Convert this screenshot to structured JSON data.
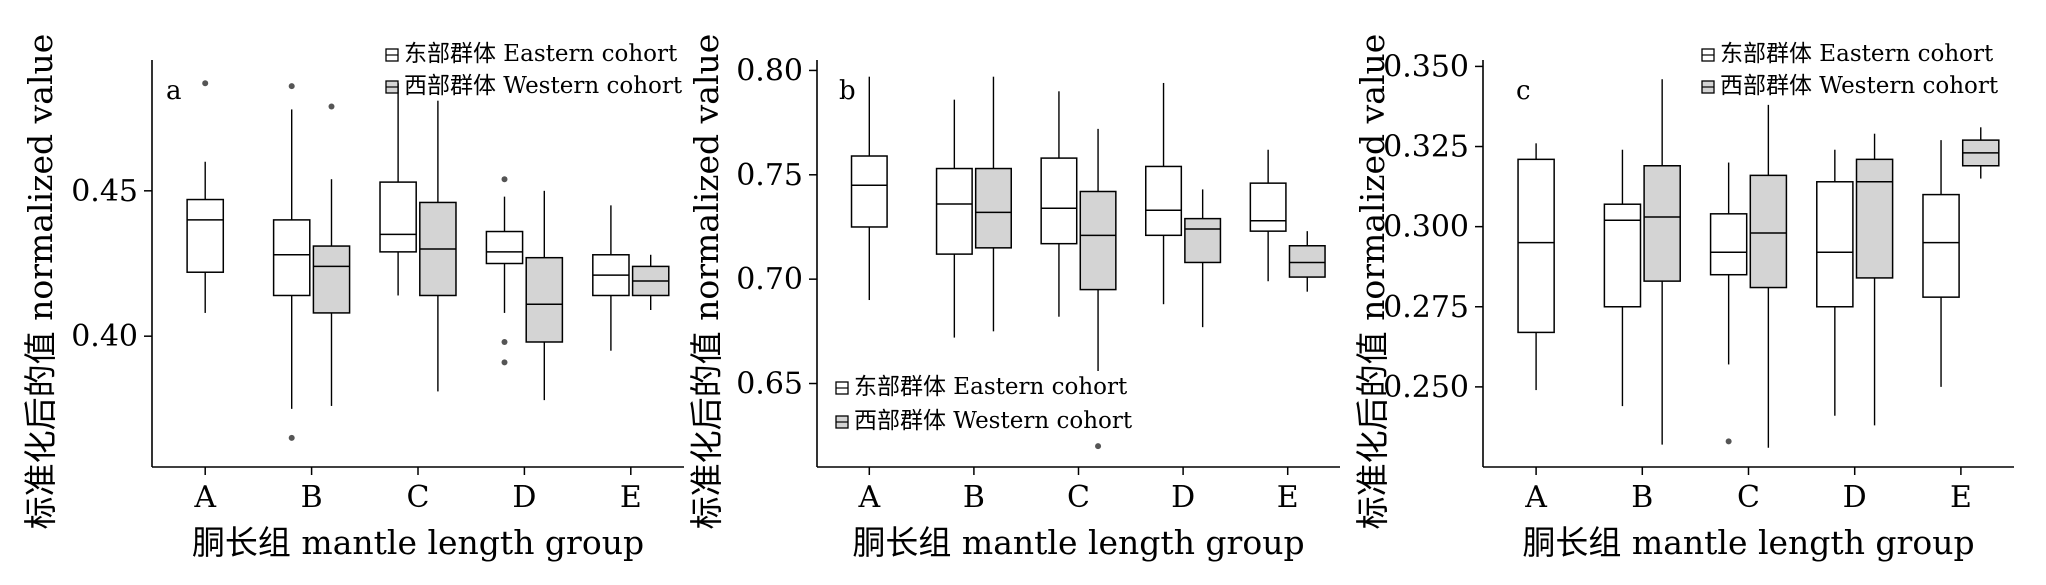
{
  "colors": {
    "eastern_fill": "#ffffff",
    "western_fill": "#d4d4d4",
    "stroke": "#000000",
    "outlier": "#555555"
  },
  "chart_data": [
    {
      "type": "boxplot",
      "panel_label": "a",
      "xlabel": "胴长组 mantle length group",
      "ylabel": "标准化后的值 normalized value",
      "categories": [
        "A",
        "B",
        "C",
        "D",
        "E"
      ],
      "ylim": [
        0.355,
        0.495
      ],
      "yticks": [
        0.4,
        0.45
      ],
      "ytick_labels": [
        "0.40",
        "0.45"
      ],
      "legend_position": "top-right",
      "series": [
        {
          "name": "东部群体 Eastern cohort",
          "boxes": [
            {
              "category": "A",
              "whisker_low": 0.408,
              "q1": 0.422,
              "median": 0.44,
              "q3": 0.447,
              "whisker_high": 0.46,
              "outliers": [
                0.487
              ]
            },
            {
              "category": "B",
              "whisker_low": 0.375,
              "q1": 0.414,
              "median": 0.428,
              "q3": 0.44,
              "whisker_high": 0.478,
              "outliers": [
                0.486,
                0.365
              ]
            },
            {
              "category": "C",
              "whisker_low": 0.414,
              "q1": 0.429,
              "median": 0.435,
              "q3": 0.453,
              "whisker_high": 0.487,
              "outliers": []
            },
            {
              "category": "D",
              "whisker_low": 0.408,
              "q1": 0.425,
              "median": 0.429,
              "q3": 0.436,
              "whisker_high": 0.448,
              "outliers": [
                0.454,
                0.398,
                0.391
              ]
            },
            {
              "category": "E",
              "whisker_low": 0.395,
              "q1": 0.414,
              "median": 0.421,
              "q3": 0.428,
              "whisker_high": 0.445,
              "outliers": []
            }
          ]
        },
        {
          "name": "西部群体 Western cohort",
          "boxes": [
            {
              "category": "A",
              "whisker_low": null,
              "q1": null,
              "median": null,
              "q3": null,
              "whisker_high": null,
              "outliers": []
            },
            {
              "category": "B",
              "whisker_low": 0.376,
              "q1": 0.408,
              "median": 0.424,
              "q3": 0.431,
              "whisker_high": 0.454,
              "outliers": [
                0.479
              ]
            },
            {
              "category": "C",
              "whisker_low": 0.381,
              "q1": 0.414,
              "median": 0.43,
              "q3": 0.446,
              "whisker_high": 0.481,
              "outliers": []
            },
            {
              "category": "D",
              "whisker_low": 0.378,
              "q1": 0.398,
              "median": 0.411,
              "q3": 0.427,
              "whisker_high": 0.45,
              "outliers": []
            },
            {
              "category": "E",
              "whisker_low": 0.409,
              "q1": 0.414,
              "median": 0.419,
              "q3": 0.424,
              "whisker_high": 0.428,
              "outliers": []
            }
          ]
        }
      ]
    },
    {
      "type": "boxplot",
      "panel_label": "b",
      "xlabel": "胴长组 mantle length group",
      "ylabel": "标准化后的值 normalized value",
      "categories": [
        "A",
        "B",
        "C",
        "D",
        "E"
      ],
      "ylim": [
        0.61,
        0.805
      ],
      "yticks": [
        0.65,
        0.7,
        0.75,
        0.8
      ],
      "ytick_labels": [
        "0.65",
        "0.70",
        "0.75",
        "0.80"
      ],
      "legend_position": "bottom-left",
      "series": [
        {
          "name": "东部群体 Eastern cohort",
          "boxes": [
            {
              "category": "A",
              "whisker_low": 0.69,
              "q1": 0.725,
              "median": 0.745,
              "q3": 0.759,
              "whisker_high": 0.797,
              "outliers": []
            },
            {
              "category": "B",
              "whisker_low": 0.672,
              "q1": 0.712,
              "median": 0.736,
              "q3": 0.753,
              "whisker_high": 0.786,
              "outliers": []
            },
            {
              "category": "C",
              "whisker_low": 0.682,
              "q1": 0.717,
              "median": 0.734,
              "q3": 0.758,
              "whisker_high": 0.79,
              "outliers": []
            },
            {
              "category": "D",
              "whisker_low": 0.688,
              "q1": 0.721,
              "median": 0.733,
              "q3": 0.754,
              "whisker_high": 0.794,
              "outliers": []
            },
            {
              "category": "E",
              "whisker_low": 0.699,
              "q1": 0.723,
              "median": 0.728,
              "q3": 0.746,
              "whisker_high": 0.762,
              "outliers": []
            }
          ]
        },
        {
          "name": "西部群体 Western cohort",
          "boxes": [
            {
              "category": "A",
              "whisker_low": null,
              "q1": null,
              "median": null,
              "q3": null,
              "whisker_high": null,
              "outliers": []
            },
            {
              "category": "B",
              "whisker_low": 0.675,
              "q1": 0.715,
              "median": 0.732,
              "q3": 0.753,
              "whisker_high": 0.797,
              "outliers": []
            },
            {
              "category": "C",
              "whisker_low": 0.656,
              "q1": 0.695,
              "median": 0.721,
              "q3": 0.742,
              "whisker_high": 0.772,
              "outliers": [
                0.62
              ]
            },
            {
              "category": "D",
              "whisker_low": 0.677,
              "q1": 0.708,
              "median": 0.724,
              "q3": 0.729,
              "whisker_high": 0.743,
              "outliers": []
            },
            {
              "category": "E",
              "whisker_low": 0.694,
              "q1": 0.701,
              "median": 0.708,
              "q3": 0.716,
              "whisker_high": 0.723,
              "outliers": []
            }
          ]
        }
      ]
    },
    {
      "type": "boxplot",
      "panel_label": "c",
      "xlabel": "胴长组 mantle length group",
      "ylabel": "标准化后的值 normalized value",
      "categories": [
        "A",
        "B",
        "C",
        "D",
        "E"
      ],
      "ylim": [
        0.225,
        0.352
      ],
      "yticks": [
        0.25,
        0.275,
        0.3,
        0.325,
        0.35
      ],
      "ytick_labels": [
        "0.250",
        "0.275",
        "0.300",
        "0.325",
        "0.350"
      ],
      "legend_position": "top-right",
      "series": [
        {
          "name": "东部群体 Eastern cohort",
          "boxes": [
            {
              "category": "A",
              "whisker_low": 0.249,
              "q1": 0.267,
              "median": 0.295,
              "q3": 0.321,
              "whisker_high": 0.326,
              "outliers": []
            },
            {
              "category": "B",
              "whisker_low": 0.244,
              "q1": 0.275,
              "median": 0.302,
              "q3": 0.307,
              "whisker_high": 0.324,
              "outliers": []
            },
            {
              "category": "C",
              "whisker_low": 0.257,
              "q1": 0.285,
              "median": 0.292,
              "q3": 0.304,
              "whisker_high": 0.32,
              "outliers": [
                0.233
              ]
            },
            {
              "category": "D",
              "whisker_low": 0.241,
              "q1": 0.275,
              "median": 0.292,
              "q3": 0.314,
              "whisker_high": 0.324,
              "outliers": []
            },
            {
              "category": "E",
              "whisker_low": 0.25,
              "q1": 0.278,
              "median": 0.295,
              "q3": 0.31,
              "whisker_high": 0.327,
              "outliers": []
            }
          ]
        },
        {
          "name": "西部群体 Western cohort",
          "boxes": [
            {
              "category": "A",
              "whisker_low": null,
              "q1": null,
              "median": null,
              "q3": null,
              "whisker_high": null,
              "outliers": []
            },
            {
              "category": "B",
              "whisker_low": 0.232,
              "q1": 0.283,
              "median": 0.303,
              "q3": 0.319,
              "whisker_high": 0.346,
              "outliers": []
            },
            {
              "category": "C",
              "whisker_low": 0.231,
              "q1": 0.281,
              "median": 0.298,
              "q3": 0.316,
              "whisker_high": 0.338,
              "outliers": []
            },
            {
              "category": "D",
              "whisker_low": 0.238,
              "q1": 0.284,
              "median": 0.314,
              "q3": 0.321,
              "whisker_high": 0.329,
              "outliers": []
            },
            {
              "category": "E",
              "whisker_low": 0.315,
              "q1": 0.319,
              "median": 0.323,
              "q3": 0.327,
              "whisker_high": 0.331,
              "outliers": []
            }
          ]
        }
      ]
    }
  ]
}
